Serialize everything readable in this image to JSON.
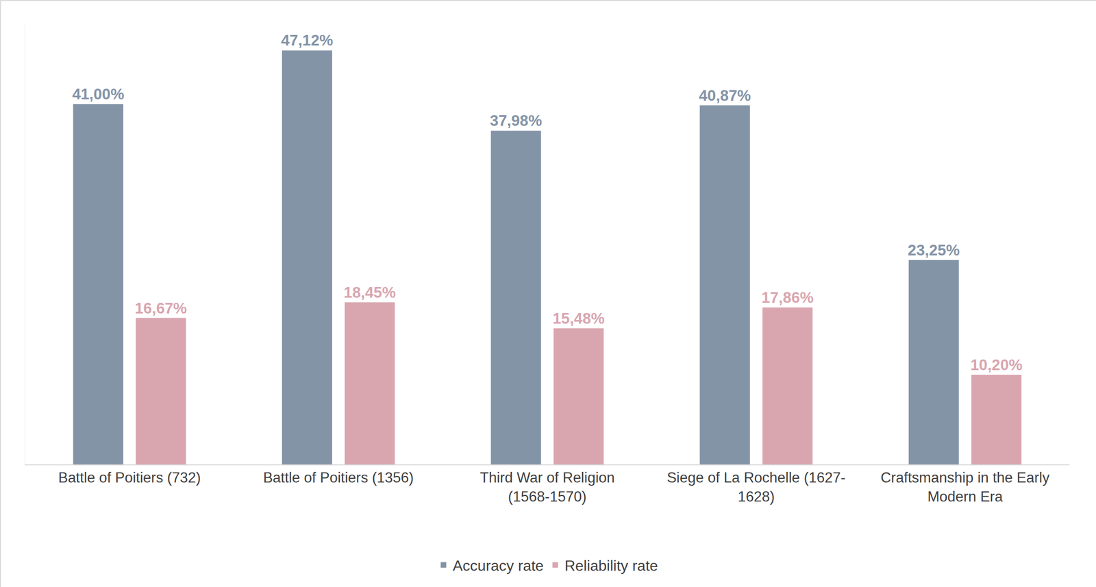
{
  "chart_data": {
    "type": "bar",
    "categories": [
      "Battle of Poitiers (732)",
      "Battle of Poitiers (1356)",
      "Third War of Religion (1568-1570)",
      "Siege of La Rochelle (1627-1628)",
      "Craftsmanship in the Early Modern Era"
    ],
    "series": [
      {
        "name": "Accuracy rate",
        "color": "#8494a7",
        "values": [
          41.0,
          47.12,
          37.98,
          40.87,
          23.25
        ],
        "value_labels": [
          "41,00%",
          "47,12%",
          "37,98%",
          "40,87%",
          "23,25%"
        ]
      },
      {
        "name": "Reliability rate",
        "color": "#d9a6b0",
        "values": [
          16.67,
          18.45,
          15.48,
          17.86,
          10.2
        ],
        "value_labels": [
          "16,67%",
          "18,45%",
          "15,48%",
          "17,86%",
          "10,20%"
        ]
      }
    ],
    "ylim": [
      0,
      50
    ],
    "yticks": [],
    "grid": false,
    "legend": "bottom",
    "data_labels": true,
    "tick_labels": "x"
  }
}
